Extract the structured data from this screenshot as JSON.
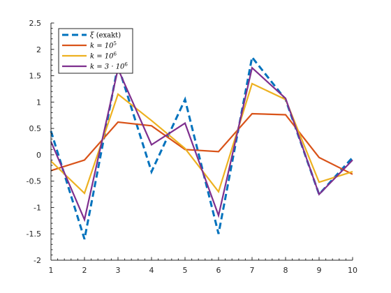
{
  "chart_data": {
    "type": "line",
    "title": "",
    "xlabel": "",
    "ylabel": "",
    "xlim": [
      1,
      10
    ],
    "ylim": [
      -2,
      2.5
    ],
    "x": [
      1,
      2,
      3,
      4,
      5,
      6,
      7,
      8,
      9,
      10
    ],
    "x_ticks": [
      "1",
      "2",
      "3",
      "4",
      "5",
      "6",
      "7",
      "8",
      "9",
      "10"
    ],
    "y_ticks": [
      -2,
      -1.5,
      -1,
      -0.5,
      0,
      0.5,
      1,
      1.5,
      2,
      2.5
    ],
    "y_tick_labels": [
      "-2",
      "-1.5",
      "-1",
      "-0.5",
      "0",
      "0.5",
      "1",
      "1.5",
      "2",
      "2.5"
    ],
    "grid": false,
    "legend_position": "top-left",
    "series": [
      {
        "name": "ξ (exakt)",
        "label_main": "ξ",
        "label_suffix": " (exakt)",
        "color": "#0072BD",
        "dashed": true,
        "values": [
          0.45,
          -1.6,
          1.7,
          -0.32,
          1.05,
          -1.5,
          1.85,
          1.05,
          -0.75,
          -0.05
        ]
      },
      {
        "name": "k = 10^5",
        "label_main": "k = 10",
        "label_exp": "5",
        "color": "#D95319",
        "dashed": false,
        "values": [
          -0.3,
          -0.1,
          0.62,
          0.55,
          0.1,
          0.06,
          0.78,
          0.76,
          -0.05,
          -0.37
        ]
      },
      {
        "name": "k = 10^6",
        "label_main": "k = 10",
        "label_exp": "6",
        "color": "#EDB120",
        "dashed": false,
        "values": [
          -0.12,
          -0.73,
          1.15,
          0.65,
          0.12,
          -0.7,
          1.35,
          1.05,
          -0.52,
          -0.32
        ]
      },
      {
        "name": "k = 3·10^6",
        "label_main": "k = 3 · 10",
        "label_exp": "6",
        "color": "#7E2F8E",
        "dashed": false,
        "values": [
          0.25,
          -1.23,
          1.63,
          0.19,
          0.6,
          -1.15,
          1.65,
          1.07,
          -0.75,
          -0.1
        ]
      }
    ]
  }
}
